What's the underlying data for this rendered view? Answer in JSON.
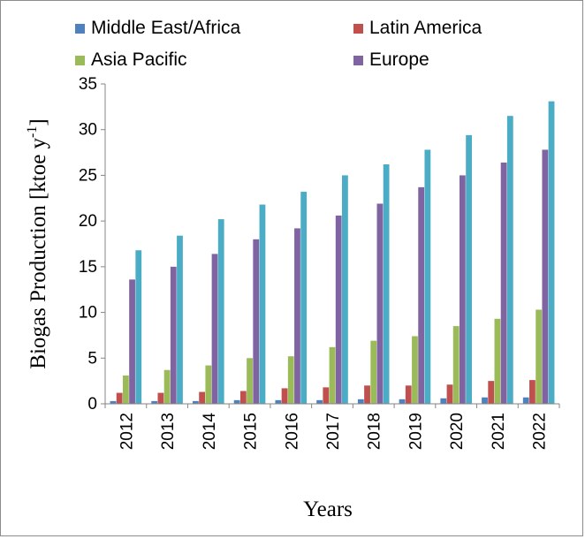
{
  "chart_data": {
    "type": "bar",
    "title": "",
    "xlabel": "Years",
    "ylabel": "Biogas Production [ktoe y",
    "ylabel_sup": "-1",
    "ylabel_close": "]",
    "ylim": [
      0,
      35
    ],
    "yticks": [
      0,
      5,
      10,
      15,
      20,
      25,
      30,
      35
    ],
    "legend_position": "top",
    "grid": false,
    "categories": [
      "2012",
      "2013",
      "2014",
      "2015",
      "2016",
      "2017",
      "2018",
      "2019",
      "2020",
      "2021",
      "2022"
    ],
    "series": [
      {
        "name": "Middle East/Africa",
        "color": "#4f81bd",
        "values": [
          0.3,
          0.3,
          0.3,
          0.4,
          0.4,
          0.4,
          0.5,
          0.5,
          0.6,
          0.7,
          0.7
        ]
      },
      {
        "name": "Latin America",
        "color": "#c0504d",
        "values": [
          1.2,
          1.2,
          1.3,
          1.4,
          1.7,
          1.8,
          2.0,
          2.0,
          2.1,
          2.5,
          2.6
        ]
      },
      {
        "name": "Asia Pacific",
        "color": "#9bbb59",
        "values": [
          3.1,
          3.7,
          4.2,
          5.0,
          5.2,
          6.2,
          6.9,
          7.4,
          8.5,
          9.3,
          10.3
        ]
      },
      {
        "name": "Europe",
        "color": "#8064a2",
        "values": [
          13.6,
          15.0,
          16.4,
          18.0,
          19.2,
          20.6,
          21.9,
          23.7,
          25.0,
          26.4,
          27.8
        ]
      },
      {
        "name": "",
        "color": "#4bacc6",
        "values": [
          16.8,
          18.4,
          20.2,
          21.8,
          23.2,
          25.0,
          26.2,
          27.8,
          29.4,
          31.5,
          33.1
        ]
      }
    ]
  }
}
